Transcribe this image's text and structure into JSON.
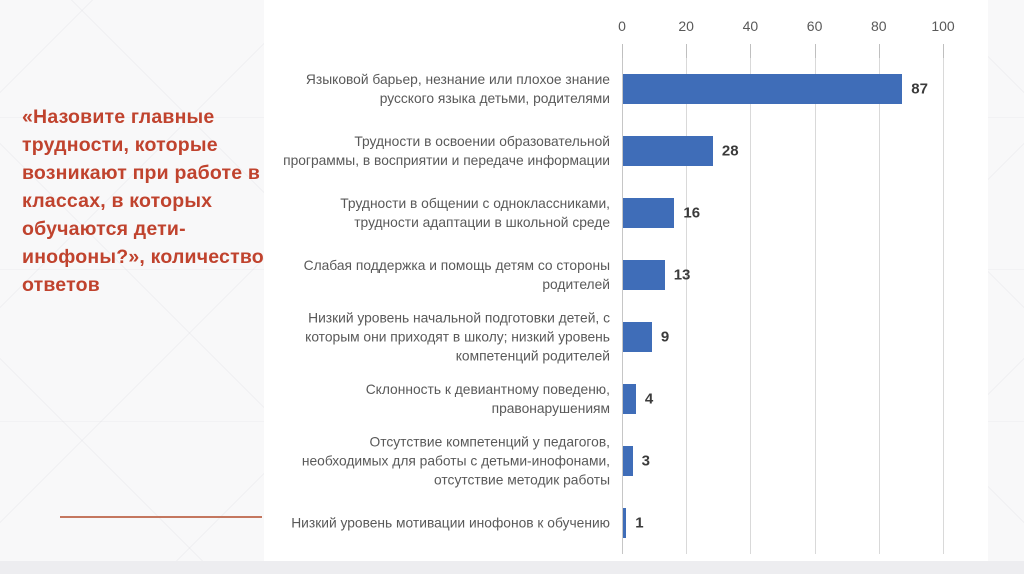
{
  "title": "«Назовите главные трудности, которые возникают при работе в классах, в которых обучаются дети-инофоны?», количество ответов",
  "colors": {
    "title": "#c0432e",
    "divider": "#c4775f",
    "bar": "#3f6db8",
    "category_text": "#595959",
    "value_text": "#3b3b3b",
    "axis_text": "#595959",
    "gridline": "#d9d9d9",
    "panel_background": "#ffffff",
    "slide_background": "#f8f8f9"
  },
  "chart_data": {
    "type": "bar",
    "orientation": "horizontal",
    "title": "«Назовите главные трудности, которые возникают при работе в классах, в которых обучаются дети-инофоны?», количество ответов",
    "categories": [
      "Языковой барьер, незнание или плохое знание русского языка детьми, родителями",
      "Трудности в освоении образовательной программы, в восприятии и передаче информации",
      "Трудности в общении с одноклассниками, трудности адаптации в школьной среде",
      "Слабая поддержка и помощь детям со стороны родителей",
      "Низкий уровень начальной подготовки детей, с которым они приходят в школу; низкий уровень компетенций родителей",
      "Склонность к девиантному поведеню, правонарушениям",
      "Отсутствие компетенций у педагогов, необходимых для работы с детьми-инофонами, отсутствие методик работы",
      "Низкий уровень мотивации инофонов к обучению"
    ],
    "values": [
      87,
      28,
      16,
      13,
      9,
      4,
      3,
      1
    ],
    "x_ticks": [
      0,
      20,
      40,
      60,
      80,
      100
    ],
    "xlim": [
      0,
      100
    ],
    "grid": true,
    "value_labels": true,
    "legend": false,
    "xlabel": "",
    "ylabel": ""
  }
}
